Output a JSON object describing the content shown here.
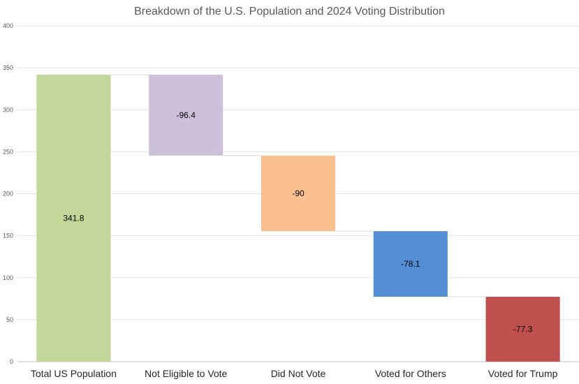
{
  "chart_data": {
    "type": "bar",
    "subtype": "waterfall",
    "title": "Breakdown of the U.S. Population and 2024 Voting Distribution",
    "xlabel": "",
    "ylabel": "",
    "categories": [
      "Total US Population",
      "Not Eligible to Vote",
      "Did Not Vote",
      "Voted for Others",
      "Voted for Trump"
    ],
    "values": [
      341.8,
      -96.4,
      -90,
      -78.1,
      -77.3
    ],
    "data_labels": [
      "341.8",
      "-96.4",
      "-90",
      "-78.1",
      "-77.3"
    ],
    "colors": [
      "#c4d79b",
      "#ccc0da",
      "#fac090",
      "#558ed5",
      "#c0504d"
    ],
    "ylim": [
      0,
      400
    ],
    "yticks": [
      0,
      50,
      100,
      150,
      200,
      250,
      300,
      350,
      400
    ],
    "grid": true,
    "legend": "none"
  }
}
